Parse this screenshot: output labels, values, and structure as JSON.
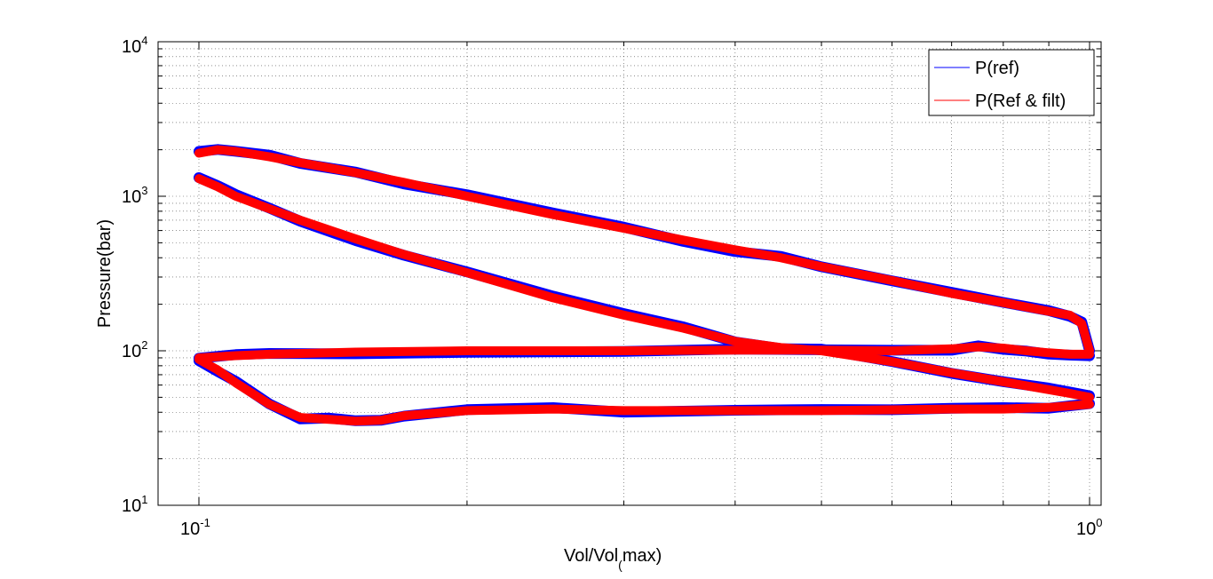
{
  "chart_data": {
    "type": "line",
    "title": "",
    "xlabel_main": "Vol/Vol",
    "xlabel_sub": "(",
    "xlabel_rest": "max)",
    "ylabel": "Pressure(bar)",
    "xscale": "log",
    "yscale": "log",
    "xlim": [
      0.1,
      1.0
    ],
    "ylim": [
      10,
      10000
    ],
    "grid": true,
    "legend_position": "top-right",
    "x_ticks": [
      {
        "base": "10",
        "exp": "-1"
      },
      {
        "base": "10",
        "exp": "0"
      }
    ],
    "y_ticks": [
      {
        "base": "10",
        "exp": "1"
      },
      {
        "base": "10",
        "exp": "2"
      },
      {
        "base": "10",
        "exp": "3"
      },
      {
        "base": "10",
        "exp": "4"
      }
    ],
    "series": [
      {
        "name": "P(ref)",
        "color": "#0000ff",
        "segments": {
          "compression": {
            "x": [
              1.0,
              0.95,
              0.9,
              0.8,
              0.7,
              0.6,
              0.5,
              0.45,
              0.4,
              0.35,
              0.3,
              0.25,
              0.2,
              0.17,
              0.15,
              0.13,
              0.12,
              0.11,
              0.105,
              0.1
            ],
            "y": [
              50,
              53,
              56,
              63,
              72,
              85,
              100,
              105,
              115,
              140,
              170,
              220,
              320,
              420,
              530,
              700,
              830,
              1000,
              1150,
              1300
            ]
          },
          "expansion": {
            "x": [
              0.1,
              0.105,
              0.11,
              0.12,
              0.13,
              0.15,
              0.17,
              0.2,
              0.25,
              0.3,
              0.35,
              0.4,
              0.45,
              0.5,
              0.6,
              0.7,
              0.8,
              0.9,
              0.95,
              0.98,
              1.0
            ],
            "y": [
              1900,
              2000,
              1950,
              1800,
              1650,
              1420,
              1230,
              1000,
              760,
              620,
              520,
              450,
              400,
              350,
              285,
              235,
              205,
              180,
              170,
              150,
              100
            ]
          },
          "exhaust": {
            "x": [
              1.0,
              0.95,
              0.9,
              0.85,
              0.8,
              0.75,
              0.7,
              0.6,
              0.5,
              0.4,
              0.3,
              0.2,
              0.15,
              0.12,
              0.11,
              0.1
            ],
            "y": [
              95,
              95,
              97,
              100,
              104,
              106,
              103,
              100,
              101,
              101,
              100,
              100,
              98,
              95,
              93,
              90
            ]
          },
          "intake": {
            "x": [
              0.1,
              0.105,
              0.11,
              0.12,
              0.13,
              0.14,
              0.15,
              0.16,
              0.17,
              0.2,
              0.25,
              0.3,
              0.4,
              0.5,
              0.6,
              0.7,
              0.8,
              0.9,
              1.0
            ],
            "y": [
              88,
              75,
              62,
              45,
              37,
              36,
              35,
              35.5,
              38,
              41,
              42,
              41,
              41,
              41,
              41.5,
              42,
              42,
              43,
              45
            ]
          }
        }
      },
      {
        "name": "P(Ref & filt)",
        "color": "#ff0000",
        "segments": {
          "compression": {
            "x": [
              1.0,
              0.95,
              0.9,
              0.8,
              0.7,
              0.6,
              0.5,
              0.45,
              0.4,
              0.35,
              0.3,
              0.25,
              0.2,
              0.17,
              0.15,
              0.13,
              0.12,
              0.11,
              0.105,
              0.1
            ],
            "y": [
              50,
              53,
              56,
              63,
              72,
              85,
              100,
              105,
              115,
              140,
              170,
              220,
              320,
              420,
              530,
              700,
              830,
              1000,
              1150,
              1300
            ]
          },
          "expansion": {
            "x": [
              0.1,
              0.105,
              0.11,
              0.12,
              0.13,
              0.15,
              0.17,
              0.2,
              0.25,
              0.3,
              0.35,
              0.4,
              0.45,
              0.5,
              0.6,
              0.7,
              0.8,
              0.9,
              0.95,
              0.98,
              1.0
            ],
            "y": [
              1900,
              2000,
              1950,
              1800,
              1650,
              1420,
              1230,
              1000,
              760,
              620,
              520,
              450,
              400,
              350,
              285,
              235,
              205,
              180,
              170,
              150,
              100
            ]
          },
          "exhaust": {
            "x": [
              1.0,
              0.95,
              0.9,
              0.85,
              0.8,
              0.75,
              0.7,
              0.6,
              0.5,
              0.4,
              0.3,
              0.2,
              0.15,
              0.12,
              0.11,
              0.1
            ],
            "y": [
              95,
              95,
              97,
              100,
              104,
              106,
              103,
              100,
              101,
              101,
              100,
              100,
              98,
              95,
              93,
              90
            ]
          },
          "intake": {
            "x": [
              0.1,
              0.105,
              0.11,
              0.12,
              0.13,
              0.14,
              0.15,
              0.16,
              0.17,
              0.2,
              0.25,
              0.3,
              0.4,
              0.5,
              0.6,
              0.7,
              0.8,
              0.9,
              1.0
            ],
            "y": [
              88,
              75,
              62,
              45,
              37,
              36,
              35,
              35.5,
              38,
              41,
              42,
              41,
              41,
              41,
              41.5,
              42,
              42,
              43,
              45
            ]
          }
        }
      }
    ]
  }
}
